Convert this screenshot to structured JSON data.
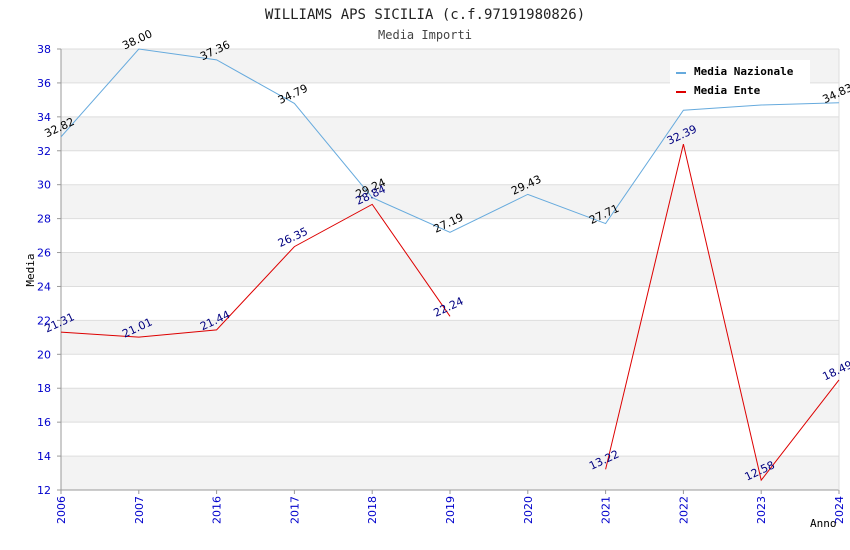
{
  "chart_data": {
    "type": "line",
    "title": "WILLIAMS APS SICILIA (c.f.97191980826)",
    "subtitle": "Media Importi",
    "xlabel": "Anno",
    "ylabel": "Media",
    "ylim": [
      12,
      38
    ],
    "yticks": [
      12,
      14,
      16,
      18,
      20,
      22,
      24,
      26,
      28,
      30,
      32,
      34,
      36,
      38
    ],
    "categories": [
      "2006",
      "2007",
      "2016",
      "2017",
      "2018",
      "2019",
      "2020",
      "2021",
      "2022",
      "2023",
      "2024"
    ],
    "legend_position": "top-right",
    "series": [
      {
        "name": "Media Nazionale",
        "color": "#66aadd",
        "values": [
          32.82,
          38.0,
          37.36,
          34.79,
          29.24,
          27.19,
          29.43,
          27.71,
          34.39,
          34.7,
          34.83
        ],
        "labels": [
          "32.82",
          "38.00",
          "37.36",
          "34.79",
          "29.24",
          "27.19",
          "29.43",
          "27.71",
          "",
          "",
          "34.83"
        ]
      },
      {
        "name": "Media Ente",
        "color": "#dd0000",
        "segments": [
          {
            "x": [
              "2006",
              "2007",
              "2016",
              "2017",
              "2018",
              "2019"
            ],
            "values": [
              21.31,
              21.01,
              21.44,
              26.35,
              28.84,
              22.24
            ]
          },
          {
            "x": [
              "2021",
              "2022",
              "2023",
              "2024"
            ],
            "values": [
              13.22,
              32.39,
              12.58,
              18.49
            ]
          }
        ],
        "labels": [
          "21.31",
          "21.01",
          "21.44",
          "26.35",
          "28.84",
          "22.24",
          "13.22",
          "32.39",
          "12.58",
          "18.49"
        ]
      }
    ]
  }
}
